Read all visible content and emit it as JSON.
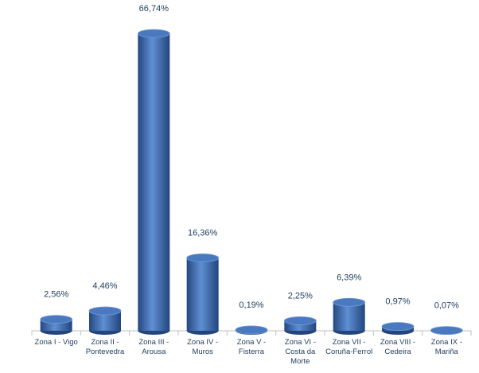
{
  "chart_data": {
    "type": "bar",
    "style": "cylinder",
    "color": "#3a6cb4",
    "categories": [
      "Zona I - Vigo",
      "Zona II - Pontevedra",
      "Zona III - Arousa",
      "Zona IV - Muros",
      "Zona V - Fisterra",
      "Zona VI - Costa da Morte",
      "Zona VII - Coruña-Ferrol",
      "Zona VIII - Cedeira",
      "Zona IX - Mariña"
    ],
    "values": [
      2.56,
      4.46,
      66.74,
      16.36,
      0.19,
      2.25,
      6.39,
      0.97,
      0.07
    ],
    "value_labels": [
      "2,56%",
      "4,46%",
      "66,74%",
      "16,36%",
      "0,19%",
      "2,25%",
      "6,39%",
      "0,97%",
      "0,07%"
    ]
  }
}
